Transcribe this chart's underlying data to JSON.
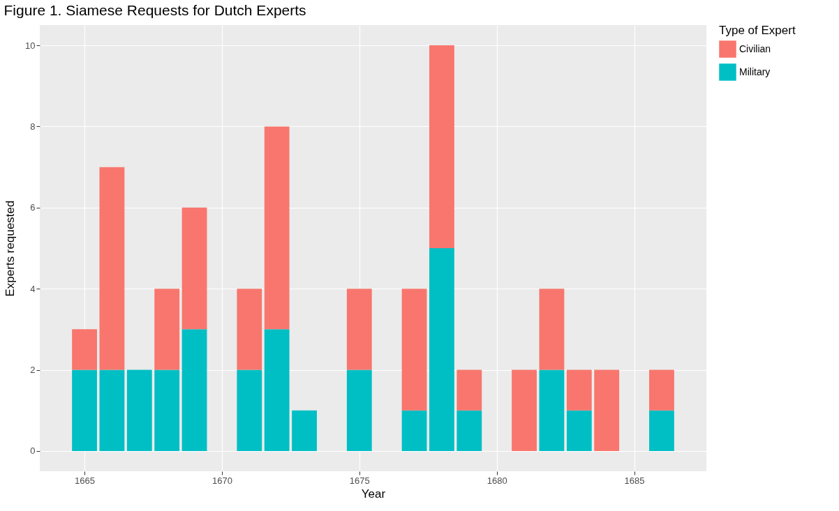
{
  "chart_data": {
    "type": "bar",
    "title": "Figure 1. Siamese Requests for Dutch Experts",
    "xlabel": "Year",
    "ylabel": "Experts requested",
    "legend_title": "Type of Expert",
    "x": [
      1665,
      1666,
      1667,
      1668,
      1669,
      1671,
      1672,
      1673,
      1675,
      1677,
      1678,
      1679,
      1681,
      1682,
      1683,
      1684,
      1686
    ],
    "series": [
      {
        "name": "Military",
        "color": "#00bfc4",
        "values": [
          2,
          2,
          2,
          2,
          3,
          2,
          3,
          1,
          2,
          1,
          5,
          1,
          0,
          2,
          1,
          0,
          1
        ]
      },
      {
        "name": "Civilian",
        "color": "#f8766d",
        "values": [
          1,
          5,
          0,
          2,
          3,
          2,
          5,
          0,
          2,
          3,
          5,
          1,
          2,
          2,
          1,
          2,
          1
        ]
      }
    ],
    "stacked": true,
    "xlim": [
      1663.5,
      1687.5
    ],
    "xticks": [
      1665,
      1670,
      1675,
      1680,
      1685
    ],
    "ylim": [
      -0.5,
      10.5
    ],
    "yticks": [
      0,
      2,
      4,
      6,
      8,
      10
    ],
    "grid": true,
    "legend": "right"
  }
}
